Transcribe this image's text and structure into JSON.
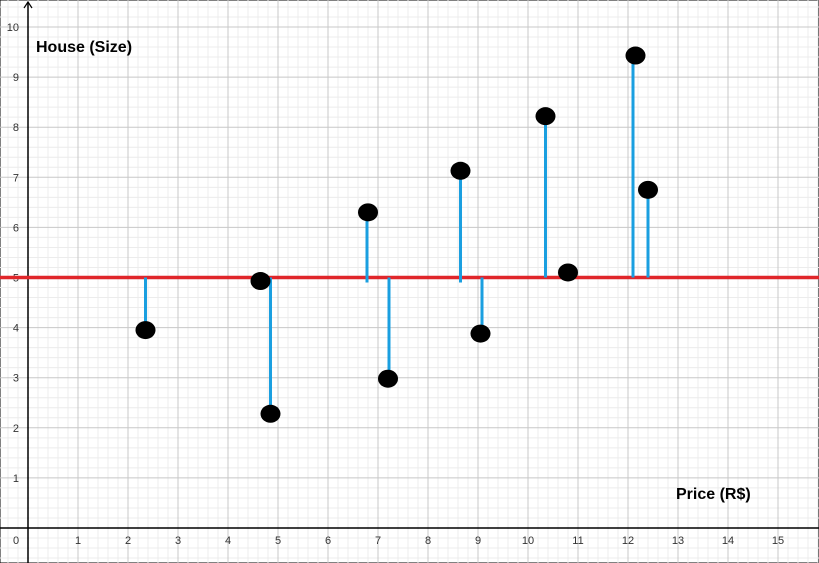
{
  "chart_data": {
    "type": "scatter",
    "xlabel": "Price (R$)",
    "ylabel": "House (Size)",
    "xlim": [
      0,
      15.8
    ],
    "ylim": [
      -0.3,
      10.4
    ],
    "x_ticks": [
      0,
      1,
      2,
      3,
      4,
      5,
      6,
      7,
      8,
      9,
      10,
      11,
      12,
      13,
      14,
      15
    ],
    "y_ticks": [
      1,
      2,
      3,
      4,
      5,
      6,
      7,
      8,
      9,
      10
    ],
    "grid": true,
    "mean_line": {
      "y": 5,
      "color": "#e0262a"
    },
    "residual_color": "#1a9fe0",
    "point_color": "#000000",
    "points": [
      {
        "x": 2.35,
        "y": 3.95
      },
      {
        "x": 4.65,
        "y": 4.93
      },
      {
        "x": 4.85,
        "y": 2.28
      },
      {
        "x": 6.8,
        "y": 6.3
      },
      {
        "x": 7.2,
        "y": 2.98
      },
      {
        "x": 8.65,
        "y": 7.13
      },
      {
        "x": 9.05,
        "y": 3.88
      },
      {
        "x": 10.35,
        "y": 8.22
      },
      {
        "x": 10.8,
        "y": 5.1
      },
      {
        "x": 12.15,
        "y": 9.43
      },
      {
        "x": 12.4,
        "y": 6.75
      }
    ],
    "residual_lines": [
      {
        "x": 2.35,
        "y1": 5,
        "y2": 4.05
      },
      {
        "x": 4.85,
        "y1": 5,
        "y2": 2.38
      },
      {
        "x": 6.78,
        "y1": 4.9,
        "y2": 6.25
      },
      {
        "x": 7.22,
        "y1": 5,
        "y2": 3.08
      },
      {
        "x": 8.65,
        "y1": 4.9,
        "y2": 7.1
      },
      {
        "x": 9.08,
        "y1": 5,
        "y2": 3.95
      },
      {
        "x": 10.35,
        "y1": 5,
        "y2": 8.15
      },
      {
        "x": 12.1,
        "y1": 5,
        "y2": 9.4
      },
      {
        "x": 12.4,
        "y1": 5,
        "y2": 6.75
      }
    ]
  }
}
